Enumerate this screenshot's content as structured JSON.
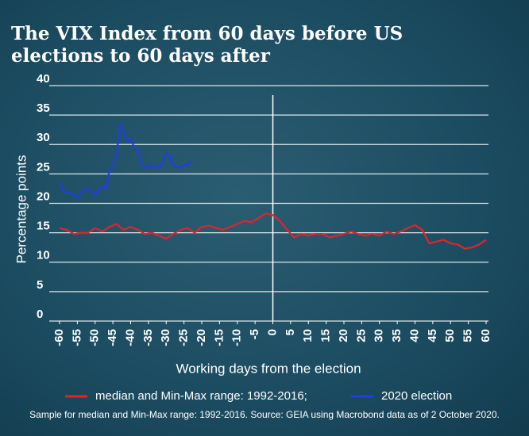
{
  "chart_data": {
    "type": "line",
    "title": "The VIX Index from 60 days before US elections to 60 days after",
    "xlabel": "Working days from the election",
    "ylabel": "Percentage points",
    "note": "Sample for median and Min-Max range: 1992-2016. Source: GEIA using Macrobond data as of 2 October 2020.",
    "xlim": [
      -60,
      60
    ],
    "ylim": [
      0,
      40
    ],
    "xticks": [
      -60,
      -55,
      -50,
      -45,
      -40,
      -35,
      -30,
      -25,
      -20,
      -15,
      -10,
      -5,
      0,
      5,
      10,
      15,
      20,
      25,
      30,
      35,
      40,
      45,
      50,
      55,
      60
    ],
    "yticks": [
      0,
      5,
      10,
      15,
      20,
      25,
      30,
      35,
      40
    ],
    "grid": true,
    "series": [
      {
        "name": "median and Min-Max range: 1992-2016;",
        "color": "#e0242b",
        "x": [
          -60,
          -58,
          -56,
          -54,
          -52,
          -50,
          -48,
          -46,
          -44,
          -42,
          -40,
          -38,
          -36,
          -34,
          -32,
          -30,
          -28,
          -26,
          -24,
          -22,
          -20,
          -18,
          -16,
          -14,
          -12,
          -10,
          -8,
          -6,
          -4,
          -2,
          0,
          2,
          4,
          6,
          8,
          10,
          12,
          14,
          16,
          18,
          20,
          22,
          24,
          26,
          28,
          30,
          32,
          34,
          36,
          38,
          40,
          42,
          44,
          46,
          48,
          50,
          52,
          54,
          56,
          58,
          60
        ],
        "values": [
          15.8,
          15.5,
          14.8,
          15,
          15,
          15.8,
          15.2,
          16,
          16.5,
          15.5,
          16,
          15.5,
          14.8,
          15,
          14.5,
          14,
          14.8,
          15.5,
          15.8,
          15,
          16,
          16.2,
          15.8,
          15.5,
          16,
          16.5,
          17,
          16.8,
          17.5,
          18.3,
          18,
          17,
          15.5,
          14.2,
          14.8,
          14.5,
          14.8,
          14.8,
          14.2,
          14.5,
          14.8,
          15.2,
          14.8,
          14.5,
          14.8,
          14.5,
          15.2,
          14.8,
          15.2,
          15.8,
          16.3,
          15.5,
          13.2,
          13.5,
          13.8,
          13.2,
          13,
          12.3,
          12.5,
          13,
          13.8
        ]
      },
      {
        "name": "2020 election",
        "color": "#1f3fe0",
        "x": [
          -60,
          -59,
          -57,
          -55,
          -53,
          -51,
          -50,
          -48,
          -47,
          -46,
          -45,
          -44,
          -43,
          -42,
          -41,
          -40,
          -39,
          -38,
          -37,
          -36,
          -35,
          -34,
          -33,
          -32,
          -31,
          -30,
          -29,
          -28,
          -27,
          -26,
          -25,
          -24,
          -23
        ],
        "values": [
          23.5,
          22,
          21.8,
          21,
          22.5,
          22,
          21.5,
          23,
          22.5,
          25.5,
          26.5,
          28,
          33.5,
          32,
          30.5,
          31,
          29.5,
          29,
          26.5,
          26,
          26.5,
          26,
          26.5,
          26,
          27,
          28.5,
          28,
          26.5,
          26,
          26.2,
          26.5,
          26.5,
          27.3
        ]
      }
    ]
  }
}
